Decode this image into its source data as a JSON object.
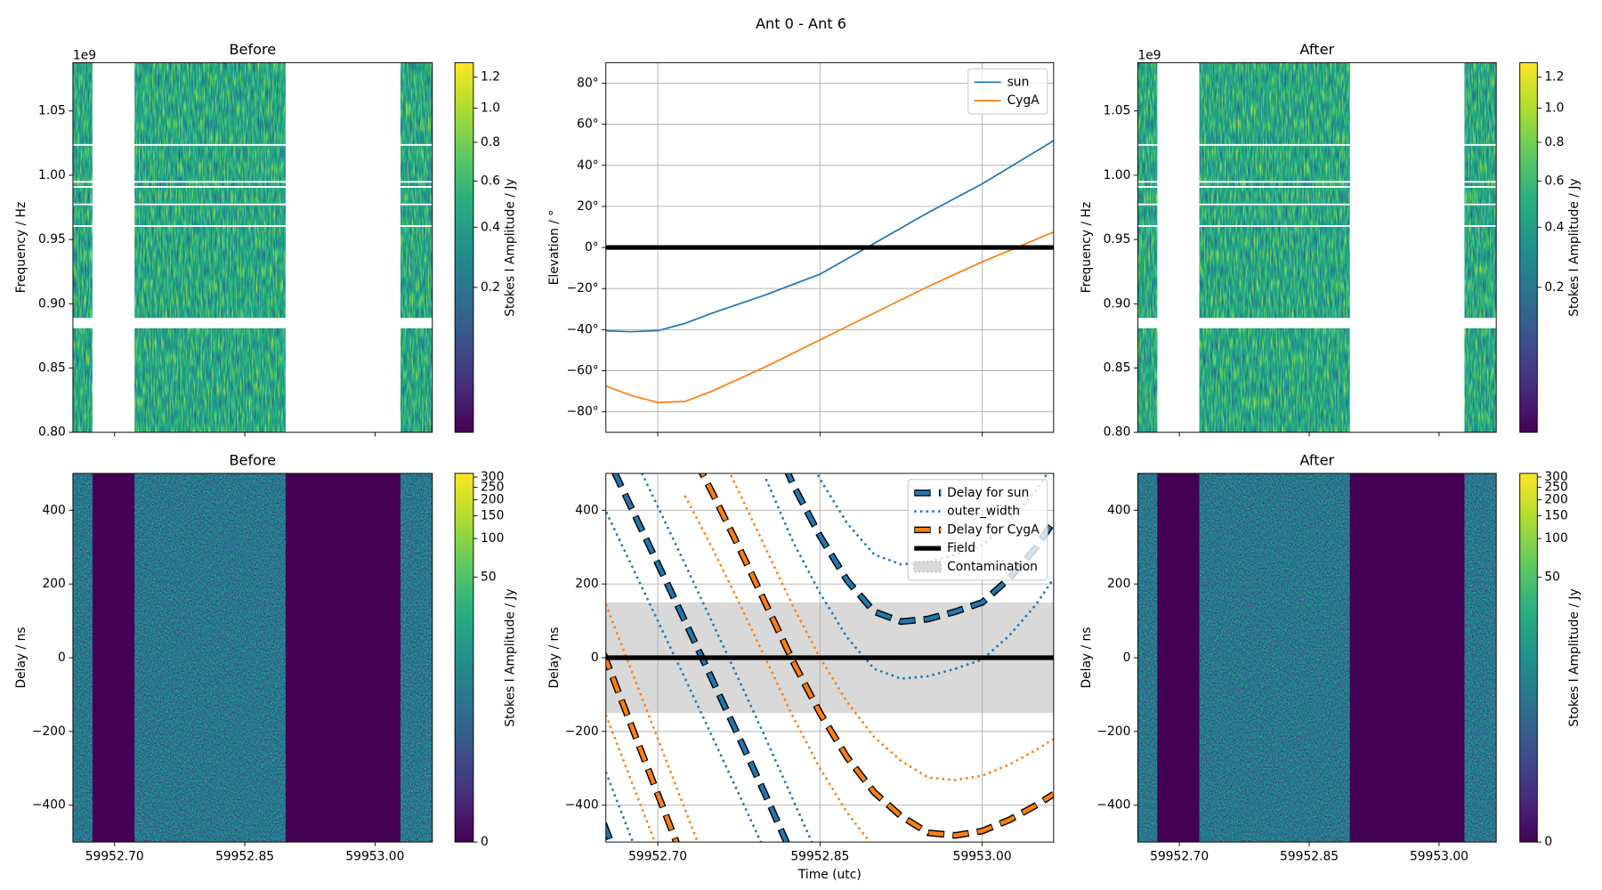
{
  "title": "Ant 0 - Ant 6",
  "chart_data": [
    {
      "type": "heatmap",
      "title": "Before",
      "ylabel": "Frequency / Hz",
      "y_offset_label": "1e9",
      "colorbar_label": "Stokes I Amplitude / Jy",
      "colormap": "viridis",
      "xlim": [
        59952.652,
        59953.066
      ],
      "xticks": [
        59952.7,
        59952.85,
        59953.0
      ],
      "ylim": [
        0.8,
        1.0876
      ],
      "yticks": [
        {
          "value": 0.8,
          "label": "0.80"
        },
        {
          "value": 0.85,
          "label": "0.85"
        },
        {
          "value": 0.9,
          "label": "0.90"
        },
        {
          "value": 0.95,
          "label": "0.95"
        },
        {
          "value": 1.0,
          "label": "1.00"
        },
        {
          "value": 1.05,
          "label": "1.05"
        }
      ],
      "clim": [
        0,
        1.3
      ],
      "cnorm": "sqrt",
      "cticks": [
        0.2,
        0.4,
        0.6,
        0.8,
        {
          "value": 1.0,
          "label": "1.0"
        },
        1.2
      ],
      "masked_x": [
        [
          59952.6745,
          59952.723
        ],
        [
          59952.897,
          59953.0293
        ]
      ],
      "mask_color": "#ffffff",
      "flagged_y": [
        1.0236,
        0.9949,
        0.9909,
        0.9773,
        0.9605
      ],
      "flagged_bands_y": [
        [
          0.881,
          0.889
        ]
      ]
    },
    {
      "type": "line",
      "ylabel": "Elevation / °",
      "grid": true,
      "legend": "upper right",
      "xlim": [
        59952.652,
        59953.066
      ],
      "xticks": [
        59952.7,
        59952.85,
        59953.0
      ],
      "ylim": [
        -90,
        90
      ],
      "yticks": [
        {
          "value": -80,
          "label": "−80°"
        },
        {
          "value": -60,
          "label": "−60°"
        },
        {
          "value": -40,
          "label": "−40°"
        },
        {
          "value": -20,
          "label": "−20°"
        },
        {
          "value": 0,
          "label": "0°"
        },
        {
          "value": 20,
          "label": "20°"
        },
        {
          "value": 40,
          "label": "40°"
        },
        {
          "value": 60,
          "label": "60°"
        },
        {
          "value": 80,
          "label": "80°"
        }
      ],
      "x": [
        59952.65,
        59952.675,
        59952.7,
        59952.725,
        59952.75,
        59952.8,
        59952.85,
        59952.9,
        59952.95,
        59953.0,
        59953.066
      ],
      "series": [
        {
          "name": "sun",
          "color": "#1f77b4",
          "linestyle": "solid",
          "values": [
            -40.5,
            -41,
            -40.5,
            -37,
            -32,
            -23,
            -13,
            2,
            17,
            31,
            52
          ]
        },
        {
          "name": "CygA",
          "color": "#ff7f0e",
          "linestyle": "solid",
          "values": [
            -67,
            -72,
            -75.5,
            -75,
            -70,
            -58,
            -45,
            -32,
            -19,
            -7,
            7.5
          ]
        }
      ],
      "hlines": [
        {
          "value": 0,
          "color": "#000000"
        }
      ]
    },
    {
      "type": "heatmap",
      "title": "After",
      "ylabel": "Frequency / Hz",
      "y_offset_label": "1e9",
      "colorbar_label": "Stokes I Amplitude / Jy",
      "colormap": "viridis",
      "xlim": [
        59952.652,
        59953.066
      ],
      "xticks": [
        59952.7,
        59952.85,
        59953.0
      ],
      "ylim": [
        0.8,
        1.0876
      ],
      "yticks": [
        {
          "value": 0.8,
          "label": "0.80"
        },
        {
          "value": 0.85,
          "label": "0.85"
        },
        {
          "value": 0.9,
          "label": "0.90"
        },
        {
          "value": 0.95,
          "label": "0.95"
        },
        {
          "value": 1.0,
          "label": "1.00"
        },
        {
          "value": 1.05,
          "label": "1.05"
        }
      ],
      "clim": [
        0,
        1.3
      ],
      "cnorm": "sqrt",
      "cticks": [
        0.2,
        0.4,
        0.6,
        0.8,
        {
          "value": 1.0,
          "label": "1.0"
        },
        1.2
      ],
      "masked_x": [
        [
          59952.6745,
          59952.723
        ],
        [
          59952.897,
          59953.0293
        ]
      ],
      "mask_color": "#ffffff",
      "flagged_y": [
        1.0236,
        0.9949,
        0.9909,
        0.9773,
        0.9605
      ],
      "flagged_bands_y": [
        [
          0.881,
          0.889
        ]
      ]
    },
    {
      "type": "heatmap",
      "title": "Before",
      "ylabel": "Delay / ns",
      "colorbar_label": "Stokes I Amplitude / Jy",
      "colormap": "viridis",
      "xlim": [
        59952.652,
        59953.066
      ],
      "xticks": [
        {
          "value": 59952.7,
          "label": "59952.70"
        },
        {
          "value": 59952.85,
          "label": "59952.85"
        },
        {
          "value": 59953.0,
          "label": "59953.00"
        }
      ],
      "ylim": [
        -500,
        500
      ],
      "yticks": [
        {
          "value": -400,
          "label": "−400"
        },
        {
          "value": -200,
          "label": "−200"
        },
        0,
        200,
        400
      ],
      "clim": [
        0,
        320
      ],
      "cnorm": "symlog",
      "linthresh": 0.45,
      "cticks": [
        0,
        50,
        100,
        150,
        200,
        250,
        300
      ],
      "masked_x": [
        [
          59952.6745,
          59952.723
        ],
        [
          59952.897,
          59953.0293
        ]
      ],
      "mask_color": "#440154"
    },
    {
      "type": "line",
      "xlabel": "Time (utc)",
      "ylabel": "Delay / ns",
      "grid": true,
      "legend": "upper right",
      "xlim": [
        59952.652,
        59953.066
      ],
      "xticks": [
        {
          "value": 59952.7,
          "label": "59952.70"
        },
        {
          "value": 59952.85,
          "label": "59952.85"
        },
        {
          "value": 59953.0,
          "label": "59953.00"
        }
      ],
      "ylim": [
        -500,
        500
      ],
      "yticks": [
        {
          "value": -400,
          "label": "−400"
        },
        {
          "value": -200,
          "label": "−200"
        },
        0,
        200,
        400
      ],
      "x": [
        59952.65,
        59952.675,
        59952.7,
        59952.725,
        59952.75,
        59952.775,
        59952.8,
        59952.825,
        59952.85,
        59952.875,
        59952.9,
        59952.925,
        59952.95,
        59952.975,
        59953.0,
        59953.025,
        59953.05,
        59953.066
      ],
      "series": [
        {
          "name": "Delay for sun",
          "color": "#1f77b4",
          "linestyle": "dashed",
          "edge_color": "#000000",
          "curves": [
            [
              -450,
              -640,
              null,
              null,
              null,
              null,
              null,
              null,
              null,
              null,
              null,
              null,
              null,
              null,
              null,
              null,
              null,
              null
            ],
            [
              565,
              410,
              255,
              100,
              -57,
              -215,
              -375,
              -540,
              null,
              null,
              null,
              null,
              null,
              null,
              null,
              null,
              null,
              null
            ],
            [
              null,
              null,
              null,
              null,
              null,
              null,
              640,
              470,
              330,
              210,
              125,
              98,
              105,
              125,
              150,
              215,
              300,
              370
            ]
          ]
        },
        {
          "name": "outer_width",
          "color": "#1f77b4",
          "linestyle": "dotted",
          "curves": [
            [
              -295,
              -485,
              -680,
              null,
              null,
              null,
              null,
              null,
              null,
              null,
              null,
              null,
              null,
              null,
              null,
              null,
              null,
              null
            ],
            [
              720,
              565,
              410,
              255,
              98,
              -60,
              -220,
              -385,
              -550,
              null,
              null,
              null,
              null,
              null,
              null,
              null,
              null,
              null
            ],
            [
              410,
              255,
              100,
              -55,
              -212,
              -370,
              -530,
              null,
              null,
              null,
              null,
              null,
              null,
              null,
              null,
              null,
              null,
              null
            ],
            [
              null,
              null,
              null,
              null,
              null,
              null,
              null,
              625,
              485,
              365,
              280,
              253,
              260,
              280,
              305,
              370,
              455,
              525
            ],
            [
              null,
              null,
              null,
              null,
              null,
              null,
              485,
              315,
              175,
              55,
              -30,
              -57,
              -50,
              -30,
              -5,
              60,
              145,
              215
            ]
          ]
        },
        {
          "name": "Delay for CygA",
          "color": "#ff7f0e",
          "linestyle": "dashed",
          "edge_color": "#000000",
          "curves": [
            [
              10,
              -180,
              -370,
              -560,
              null,
              null,
              null,
              null,
              null,
              null,
              null,
              null,
              null,
              null,
              null,
              null,
              null,
              null
            ],
            [
              null,
              null,
              null,
              590,
              450,
              300,
              145,
              -10,
              -150,
              -270,
              -365,
              -430,
              -475,
              -482,
              -470,
              -440,
              -400,
              -370
            ]
          ]
        },
        {
          "color": "#ff7f0e",
          "linestyle": "dotted",
          "curves": [
            [
              160,
              -30,
              -220,
              -410,
              -600,
              null,
              null,
              null,
              null,
              null,
              null,
              null,
              null,
              null,
              null,
              null,
              null,
              null
            ],
            [
              -140,
              -330,
              -520,
              null,
              null,
              null,
              null,
              null,
              null,
              null,
              null,
              null,
              null,
              null,
              null,
              null,
              null,
              null
            ],
            [
              null,
              null,
              null,
              740,
              600,
              450,
              295,
              140,
              0,
              -120,
              -215,
              -280,
              -325,
              -332,
              -320,
              -290,
              -250,
              -220
            ],
            [
              null,
              null,
              null,
              440,
              300,
              150,
              -5,
              -160,
              -300,
              -420,
              -515,
              -580,
              -625,
              -632,
              -620,
              -590,
              -550,
              -520
            ]
          ]
        }
      ],
      "hlines": [
        {
          "name": "Field",
          "value": 0,
          "color": "#000000"
        }
      ],
      "bands": [
        {
          "name": "Contamination",
          "range": [
            -150,
            150
          ],
          "color": "#d9d9d9"
        }
      ]
    },
    {
      "type": "heatmap",
      "title": "After",
      "ylabel": "Delay / ns",
      "colorbar_label": "Stokes I Amplitude / Jy",
      "colormap": "viridis",
      "xlim": [
        59952.652,
        59953.066
      ],
      "xticks": [
        {
          "value": 59952.7,
          "label": "59952.70"
        },
        {
          "value": 59952.85,
          "label": "59952.85"
        },
        {
          "value": 59953.0,
          "label": "59953.00"
        }
      ],
      "ylim": [
        -500,
        500
      ],
      "yticks": [
        {
          "value": -400,
          "label": "−400"
        },
        {
          "value": -200,
          "label": "−200"
        },
        0,
        200,
        400
      ],
      "clim": [
        0,
        320
      ],
      "cnorm": "symlog",
      "linthresh": 0.45,
      "cticks": [
        0,
        50,
        100,
        150,
        200,
        250,
        300
      ],
      "masked_x": [
        [
          59952.6745,
          59952.723
        ],
        [
          59952.897,
          59953.0293
        ]
      ],
      "mask_color": "#440154"
    }
  ]
}
